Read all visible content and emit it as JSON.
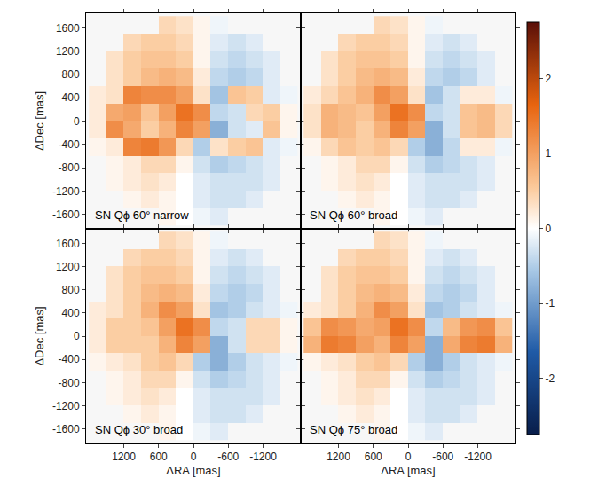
{
  "chart_data": [
    {
      "type": "heatmap",
      "label": "SN Qϕ 60° narrow",
      "ylabel": "ΔDec [mas]",
      "tick_labels": "y",
      "xlim": [
        1850,
        -1850
      ],
      "ylim": [
        -1850,
        1850
      ],
      "xticks": [
        1200,
        600,
        0,
        -600,
        -1200
      ],
      "yticks": [
        -1600,
        -1200,
        -800,
        -400,
        0,
        400,
        800,
        1200,
        1600
      ],
      "zlim": [
        -2.75,
        2.75
      ],
      "x": [
        1650,
        1350,
        1050,
        750,
        450,
        150,
        -150,
        -450,
        -750,
        -1050,
        -1350,
        -1650
      ],
      "y": [
        1650,
        1350,
        1050,
        750,
        450,
        150,
        -150,
        -450,
        -750,
        -1050,
        -1350,
        -1650
      ],
      "z": [
        [
          null,
          null,
          null,
          null,
          0.4,
          0.3,
          0.1,
          -0.1,
          null,
          null,
          null,
          null
        ],
        [
          null,
          null,
          0.4,
          0.5,
          0.5,
          0.4,
          0.1,
          -0.2,
          -0.3,
          -0.2,
          null,
          null
        ],
        [
          null,
          0.3,
          0.5,
          0.6,
          0.6,
          0.5,
          0.1,
          -0.3,
          -0.4,
          -0.3,
          -0.2,
          null
        ],
        [
          null,
          0.3,
          0.5,
          0.7,
          0.8,
          0.7,
          0.2,
          -0.4,
          -0.5,
          -0.4,
          -0.2,
          null
        ],
        [
          0.2,
          0.3,
          1.3,
          1.2,
          1.2,
          1.0,
          0.3,
          -0.6,
          0.6,
          0.5,
          -0.2,
          -0.1
        ],
        [
          0.2,
          0.9,
          1.0,
          0.6,
          1.0,
          1.5,
          1.2,
          -0.4,
          -0.3,
          0.4,
          0.5,
          0.1
        ],
        [
          0.2,
          1.2,
          0.9,
          0.5,
          0.8,
          1.3,
          1.0,
          -0.8,
          -0.3,
          -0.2,
          0.6,
          0.1
        ],
        [
          0.1,
          0.2,
          1.3,
          1.4,
          1.1,
          0.4,
          -0.5,
          0.3,
          0.5,
          0.6,
          -0.2,
          -0.1
        ],
        [
          null,
          0.1,
          0.2,
          0.4,
          0.4,
          0.1,
          -0.3,
          -0.5,
          -0.4,
          -0.3,
          -0.2,
          null
        ],
        [
          null,
          0.1,
          0.2,
          0.3,
          0.2,
          0.0,
          -0.2,
          -0.3,
          -0.3,
          -0.3,
          -0.2,
          null
        ],
        [
          null,
          null,
          0.1,
          0.2,
          0.1,
          0.0,
          -0.2,
          -0.3,
          -0.3,
          -0.2,
          null,
          null
        ],
        [
          null,
          null,
          null,
          null,
          0.1,
          0.0,
          -0.1,
          -0.2,
          null,
          null,
          null,
          null
        ]
      ]
    },
    {
      "type": "heatmap",
      "label": "SN Qϕ 60° broad",
      "tick_labels": false,
      "xlim": [
        1850,
        -1850
      ],
      "ylim": [
        -1850,
        1850
      ],
      "xticks": [
        1200,
        600,
        0,
        -600,
        -1200
      ],
      "yticks": [
        -1600,
        -1200,
        -800,
        -400,
        0,
        400,
        800,
        1200,
        1600
      ],
      "zlim": [
        -2.75,
        2.75
      ],
      "colorbar_ticks": [
        -2,
        -1,
        0,
        1,
        2
      ],
      "x": [
        1650,
        1350,
        1050,
        750,
        450,
        150,
        -150,
        -450,
        -750,
        -1050,
        -1350,
        -1650
      ],
      "y": [
        1650,
        1350,
        1050,
        750,
        450,
        150,
        -150,
        -450,
        -750,
        -1050,
        -1350,
        -1650
      ],
      "z": [
        [
          null,
          null,
          null,
          null,
          0.4,
          0.3,
          0.1,
          -0.1,
          null,
          null,
          null,
          null
        ],
        [
          null,
          null,
          0.4,
          0.5,
          0.5,
          0.4,
          0.1,
          -0.2,
          -0.3,
          -0.2,
          null,
          null
        ],
        [
          null,
          0.3,
          0.5,
          0.6,
          0.6,
          0.5,
          0.1,
          -0.3,
          -0.4,
          -0.3,
          -0.2,
          null
        ],
        [
          null,
          0.3,
          0.5,
          0.7,
          0.8,
          0.7,
          0.2,
          -0.4,
          -0.5,
          -0.4,
          -0.2,
          null
        ],
        [
          0.2,
          0.4,
          0.6,
          0.8,
          1.2,
          1.0,
          0.3,
          -0.6,
          -0.3,
          0.2,
          0.2,
          -0.1
        ],
        [
          0.3,
          0.8,
          0.7,
          0.6,
          1.0,
          1.5,
          1.2,
          -0.4,
          -0.3,
          0.6,
          0.7,
          0.4
        ],
        [
          0.3,
          0.8,
          0.7,
          0.5,
          0.8,
          1.3,
          1.0,
          -0.8,
          -0.3,
          0.6,
          0.7,
          0.4
        ],
        [
          0.1,
          0.4,
          0.6,
          0.5,
          0.6,
          0.4,
          -0.5,
          -0.8,
          -0.4,
          0.2,
          0.2,
          -0.1
        ],
        [
          null,
          0.1,
          0.2,
          0.4,
          0.4,
          0.1,
          -0.3,
          -0.5,
          -0.4,
          -0.3,
          -0.2,
          null
        ],
        [
          null,
          0.1,
          0.2,
          0.3,
          0.2,
          0.0,
          -0.2,
          -0.3,
          -0.3,
          -0.3,
          -0.2,
          null
        ],
        [
          null,
          null,
          0.1,
          0.2,
          0.1,
          0.0,
          -0.2,
          -0.3,
          -0.3,
          -0.2,
          null,
          null
        ],
        [
          null,
          null,
          null,
          null,
          0.1,
          0.0,
          -0.1,
          -0.2,
          null,
          null,
          null,
          null
        ]
      ]
    },
    {
      "type": "heatmap",
      "label": "SN Qϕ 30° broad",
      "xlabel": "ΔRA [mas]",
      "ylabel": "ΔDec [mas]",
      "tick_labels": true,
      "xlim": [
        1850,
        -1850
      ],
      "ylim": [
        -1850,
        1850
      ],
      "xticks": [
        1200,
        600,
        0,
        -600,
        -1200
      ],
      "yticks": [
        -1600,
        -1200,
        -800,
        -400,
        0,
        400,
        800,
        1200,
        1600
      ],
      "zlim": [
        -2.75,
        2.75
      ],
      "x": [
        1650,
        1350,
        1050,
        750,
        450,
        150,
        -150,
        -450,
        -750,
        -1050,
        -1350,
        -1650
      ],
      "y": [
        1650,
        1350,
        1050,
        750,
        450,
        150,
        -150,
        -450,
        -750,
        -1050,
        -1350,
        -1650
      ],
      "z": [
        [
          null,
          null,
          null,
          null,
          0.4,
          0.3,
          0.1,
          -0.1,
          null,
          null,
          null,
          null
        ],
        [
          null,
          null,
          0.4,
          0.5,
          0.5,
          0.4,
          0.1,
          -0.2,
          -0.3,
          -0.2,
          null,
          null
        ],
        [
          null,
          0.3,
          0.5,
          0.6,
          0.6,
          0.5,
          0.1,
          -0.3,
          -0.4,
          -0.3,
          -0.2,
          null
        ],
        [
          null,
          0.3,
          0.5,
          0.7,
          0.8,
          0.7,
          0.2,
          -0.4,
          -0.5,
          -0.4,
          -0.2,
          null
        ],
        [
          0.2,
          0.3,
          0.5,
          0.8,
          1.2,
          1.0,
          0.3,
          -0.6,
          -0.5,
          -0.3,
          -0.2,
          -0.1
        ],
        [
          0.2,
          0.5,
          0.5,
          0.6,
          1.0,
          1.5,
          1.2,
          -0.4,
          -0.3,
          0.4,
          0.4,
          0.1
        ],
        [
          0.2,
          0.5,
          0.5,
          0.5,
          0.8,
          1.3,
          1.0,
          -0.8,
          -0.3,
          0.4,
          0.4,
          0.1
        ],
        [
          0.1,
          0.2,
          0.3,
          0.5,
          0.6,
          0.4,
          -0.5,
          -0.8,
          -0.5,
          -0.3,
          -0.2,
          -0.1
        ],
        [
          null,
          0.1,
          0.2,
          0.4,
          0.4,
          0.1,
          -0.3,
          -0.5,
          -0.4,
          -0.3,
          -0.2,
          null
        ],
        [
          null,
          0.1,
          0.2,
          0.3,
          0.2,
          0.0,
          -0.2,
          -0.3,
          -0.3,
          -0.3,
          -0.2,
          null
        ],
        [
          null,
          null,
          0.1,
          0.2,
          0.1,
          0.0,
          -0.2,
          -0.3,
          -0.3,
          -0.2,
          null,
          null
        ],
        [
          null,
          null,
          null,
          null,
          0.1,
          0.0,
          -0.1,
          -0.2,
          null,
          null,
          null,
          null
        ]
      ]
    },
    {
      "type": "heatmap",
      "label": "SN Qϕ 75° broad",
      "xlabel": "ΔRA [mas]",
      "tick_labels": "x",
      "xlim": [
        1850,
        -1850
      ],
      "ylim": [
        -1850,
        1850
      ],
      "xticks": [
        1200,
        600,
        0,
        -600,
        -1200
      ],
      "yticks": [
        -1600,
        -1200,
        -800,
        -400,
        0,
        400,
        800,
        1200,
        1600
      ],
      "zlim": [
        -2.75,
        2.75
      ],
      "x": [
        1650,
        1350,
        1050,
        750,
        450,
        150,
        -150,
        -450,
        -750,
        -1050,
        -1350,
        -1650
      ],
      "y": [
        1650,
        1350,
        1050,
        750,
        450,
        150,
        -150,
        -450,
        -750,
        -1050,
        -1350,
        -1650
      ],
      "z": [
        [
          null,
          null,
          null,
          null,
          0.4,
          0.3,
          0.1,
          -0.1,
          null,
          null,
          null,
          null
        ],
        [
          null,
          null,
          0.4,
          0.5,
          0.5,
          0.4,
          0.1,
          -0.2,
          -0.3,
          -0.2,
          null,
          null
        ],
        [
          null,
          0.3,
          0.5,
          0.6,
          0.6,
          0.5,
          0.1,
          -0.3,
          -0.4,
          -0.3,
          -0.2,
          null
        ],
        [
          null,
          0.3,
          0.5,
          0.7,
          0.8,
          0.7,
          0.2,
          -0.4,
          -0.5,
          -0.4,
          -0.2,
          null
        ],
        [
          0.2,
          0.3,
          0.5,
          0.8,
          1.2,
          1.0,
          0.3,
          -0.6,
          -0.5,
          -0.3,
          -0.2,
          -0.1
        ],
        [
          0.6,
          1.2,
          1.1,
          0.9,
          1.0,
          1.5,
          1.2,
          -0.4,
          0.7,
          1.1,
          1.2,
          0.6
        ],
        [
          0.8,
          1.4,
          1.3,
          1.0,
          0.8,
          1.3,
          1.0,
          -0.8,
          0.9,
          1.3,
          1.4,
          0.8
        ],
        [
          0.1,
          0.2,
          0.3,
          0.5,
          0.6,
          0.4,
          -0.5,
          -0.8,
          -0.5,
          -0.3,
          -0.2,
          -0.1
        ],
        [
          null,
          0.1,
          0.2,
          0.4,
          0.4,
          0.1,
          -0.3,
          -0.5,
          -0.4,
          -0.3,
          -0.2,
          null
        ],
        [
          null,
          0.1,
          0.2,
          0.3,
          0.2,
          0.0,
          -0.2,
          -0.3,
          -0.3,
          -0.3,
          -0.2,
          null
        ],
        [
          null,
          null,
          0.1,
          0.2,
          0.1,
          0.0,
          -0.2,
          -0.3,
          -0.3,
          -0.2,
          null,
          null
        ],
        [
          null,
          null,
          null,
          null,
          0.1,
          0.0,
          -0.1,
          -0.2,
          null,
          null,
          null,
          null
        ]
      ]
    }
  ]
}
